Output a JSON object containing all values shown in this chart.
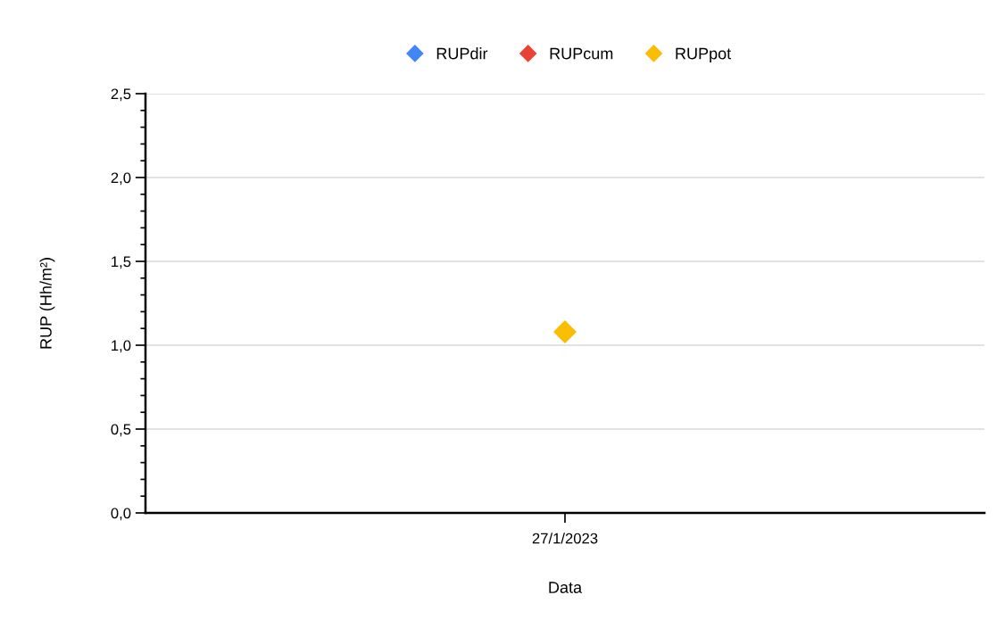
{
  "chart_data": {
    "type": "scatter",
    "xlabel": "Data",
    "ylabel": "RUP (Hh/m²)",
    "categories": [
      "27/1/2023"
    ],
    "series": [
      {
        "name": "RUPdir",
        "color": "#4285f4",
        "values": [
          null
        ]
      },
      {
        "name": "RUPcum",
        "color": "#ea4335",
        "values": [
          null
        ]
      },
      {
        "name": "RUPpot",
        "color": "#fbbc04",
        "values": [
          1.08
        ]
      }
    ],
    "ylim": [
      0,
      2.5
    ],
    "yticks": [
      {
        "value": 0,
        "label": "0,0"
      },
      {
        "value": 0.5,
        "label": "0,5"
      },
      {
        "value": 1,
        "label": "1,0"
      },
      {
        "value": 1.5,
        "label": "1,5"
      },
      {
        "value": 2,
        "label": "2,0"
      },
      {
        "value": 2.5,
        "label": "2,5"
      }
    ],
    "grid": "y",
    "legend": "top",
    "marker": "diamond"
  }
}
